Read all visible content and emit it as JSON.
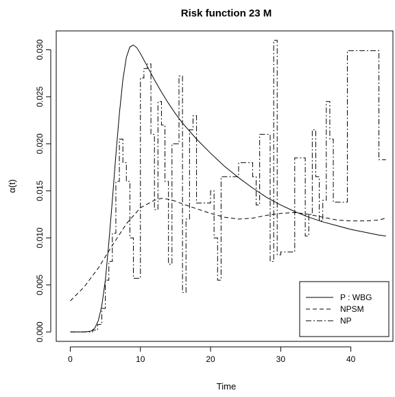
{
  "chart_data": {
    "type": "line",
    "title": "Risk function 23 M",
    "xlabel": "Time",
    "ylabel": "α(t)",
    "xlim": [
      -2,
      46
    ],
    "ylim": [
      -0.001,
      0.032
    ],
    "xticks": [
      0,
      10,
      20,
      30,
      40
    ],
    "yticks": [
      0.0,
      0.005,
      0.01,
      0.015,
      0.02,
      0.025,
      0.03
    ],
    "ytick_labels": [
      "0.000",
      "0.005",
      "0.010",
      "0.015",
      "0.020",
      "0.025",
      "0.030"
    ],
    "legend_position": "bottom-right",
    "series": [
      {
        "name": "P   : WBG",
        "dash": "solid",
        "x": [
          0,
          2,
          3,
          3.5,
          4,
          4.5,
          5,
          5.5,
          6,
          6.5,
          7,
          7.5,
          8,
          8.5,
          9,
          9.5,
          10,
          11,
          12,
          13,
          14,
          15,
          16,
          18,
          20,
          22,
          24,
          26,
          28,
          30,
          32,
          34,
          36,
          38,
          40,
          42,
          44,
          45
        ],
        "y": [
          0.0,
          0.0,
          0.0001,
          0.0004,
          0.0012,
          0.0028,
          0.0055,
          0.0095,
          0.014,
          0.0188,
          0.0232,
          0.0268,
          0.0292,
          0.0303,
          0.0305,
          0.0302,
          0.0296,
          0.0282,
          0.0268,
          0.0255,
          0.0243,
          0.0232,
          0.0222,
          0.0205,
          0.019,
          0.0176,
          0.0164,
          0.0153,
          0.0143,
          0.0135,
          0.0128,
          0.0122,
          0.0117,
          0.0113,
          0.0109,
          0.0106,
          0.0103,
          0.0102
        ]
      },
      {
        "name": "NPSM",
        "dash": "dashed",
        "x": [
          0,
          2,
          4,
          6,
          8,
          10,
          12,
          13,
          14,
          15,
          16,
          18,
          20,
          22,
          24,
          26,
          28,
          30,
          32,
          34,
          36,
          38,
          40,
          42,
          44,
          45
        ],
        "y": [
          0.0033,
          0.0048,
          0.0068,
          0.0092,
          0.0115,
          0.0132,
          0.014,
          0.0142,
          0.0141,
          0.0139,
          0.0136,
          0.0131,
          0.0126,
          0.0122,
          0.012,
          0.0121,
          0.0124,
          0.0126,
          0.0127,
          0.0125,
          0.0122,
          0.0119,
          0.0118,
          0.0118,
          0.0119,
          0.0121
        ]
      },
      {
        "name": "NP",
        "dash": "dashdot",
        "step": true,
        "x": [
          0,
          3.2,
          3.9,
          4.5,
          5.0,
          5.5,
          6.0,
          6.5,
          7.0,
          7.5,
          8.0,
          8.5,
          9.0,
          10.0,
          10.5,
          11.0,
          11.5,
          12.0,
          12.5,
          13.0,
          13.5,
          14.0,
          14.5,
          15.5,
          16.0,
          16.5,
          17.0,
          17.5,
          18.0,
          19.0,
          20.0,
          20.5,
          21.0,
          21.5,
          22.0,
          23.0,
          24.0,
          25.0,
          26.0,
          26.5,
          27.0,
          28.0,
          28.5,
          29.0,
          29.5,
          30.0,
          31.0,
          32.0,
          33.0,
          33.5,
          34.0,
          34.5,
          35.0,
          35.5,
          36.0,
          36.5,
          37.0,
          37.5,
          38.0,
          38.5,
          39.5,
          40.0,
          43.0,
          44.0,
          45.0
        ],
        "y": [
          0.0,
          0.0002,
          0.0008,
          0.0025,
          0.0055,
          0.0075,
          0.0105,
          0.016,
          0.0205,
          0.018,
          0.016,
          0.01,
          0.0057,
          0.027,
          0.028,
          0.0285,
          0.021,
          0.013,
          0.0245,
          0.022,
          0.016,
          0.0072,
          0.02,
          0.0272,
          0.0042,
          0.012,
          0.0215,
          0.023,
          0.0137,
          0.0137,
          0.015,
          0.01,
          0.0055,
          0.0165,
          0.0165,
          0.0165,
          0.018,
          0.018,
          0.0165,
          0.0135,
          0.021,
          0.021,
          0.0075,
          0.031,
          0.0082,
          0.0085,
          0.0085,
          0.0185,
          0.0185,
          0.0102,
          0.0125,
          0.0215,
          0.0165,
          0.0118,
          0.014,
          0.0245,
          0.0205,
          0.0138,
          0.0138,
          0.0138,
          0.0299,
          0.0299,
          0.0299,
          0.0183,
          0.0183
        ]
      }
    ]
  }
}
